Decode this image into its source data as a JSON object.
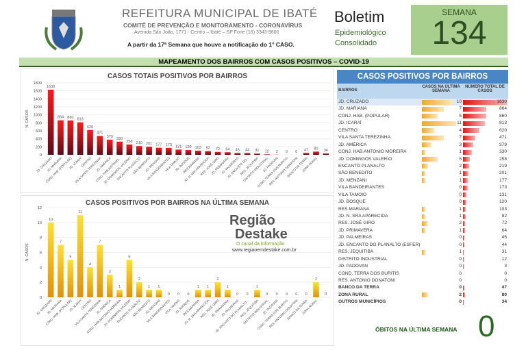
{
  "header": {
    "org": "REFEITURA MUNICIPAL DE IBATÉ",
    "committee": "COMITÊ DE PREVENÇÃO E MONITORAMENTO - CORONAVÍRUS",
    "address": "Avenida São João, 1771 - Centro – Ibaté – SP Fone (16) 3343-9800",
    "notice": "A partir da 17ª Semana que houve a notificação do 1° CASO.",
    "bulletin": "Boletim",
    "bulletin_sub1": "Epidemiológico",
    "bulletin_sub2": "Consolidado",
    "week_label": "SEMANA",
    "week_number": "134"
  },
  "banner": "MAPEAMENTO DOS BAIRROS COM CASOS POSITIVOS – COVID-19",
  "chart_data": [
    {
      "type": "bar",
      "title": "CASOS TOTAIS POSITIVOS POR BAIRROS",
      "ylabel": "N. CASOS",
      "ylim": [
        0,
        1800
      ],
      "yticks": [
        0,
        200,
        400,
        600,
        800,
        1000,
        1200,
        1400,
        1600,
        1800
      ],
      "color": "#e21a1a",
      "categories": [
        "JD. CRUZADO",
        "JD. MARIANA",
        "CONJ. HAB. (POPULAR)",
        "JD. ICARAÍ",
        "CENTRO",
        "VILA SANTA TEREZINHA",
        "JD. AMÉRICA",
        "CONJ. HAB.ANTONIO...",
        "JD. DOMINGOS VALERIO",
        "ENCANTO PLANALTO",
        "SÃO BENEDITO",
        "JD. MENZANI",
        "VILA BANDEIRANTES",
        "VILA TAMOIO",
        "JD. BOSQUE",
        "RES.MARIANA",
        "JD. N. SRA APARECIDA",
        "RES. JOSÉ GIRO",
        "JD. PRIMAVERA",
        "JD. PALMEIRAS",
        "JD. ENCANTO DO...",
        "RES. JEQUITIBA",
        "DISTRITO INDUSTRIAL",
        "JD. PADOVAN",
        "COND. TERRA DOS BURITIS",
        "RES. ANTONIO DONATONI",
        "BANCO DA TERRA",
        "ZONA RURAL",
        ""
      ],
      "values": [
        1630,
        864,
        860,
        813,
        620,
        471,
        379,
        330,
        258,
        219,
        201,
        177,
        173,
        131,
        120,
        103,
        92,
        72,
        64,
        45,
        44,
        31,
        12,
        3,
        0,
        0,
        47,
        80,
        34
      ]
    },
    {
      "type": "bar",
      "title": "CASOS POSITIVOS POR BAIRROS NA ÚLTIMA SEMANA",
      "ylabel": "N. CASOS",
      "ylim": [
        0,
        12
      ],
      "yticks": [
        0,
        2,
        4,
        6,
        8,
        10,
        12
      ],
      "color": "#f5c518",
      "categories": [
        "JD. CRUZADO",
        "JD. MARIANA",
        "CONJ. HAB. (POPULAR)",
        "JD. ICARAÍ",
        "CENTRO",
        "VILA SANTA TEREZINHA",
        "JD. AMÉRICA",
        "CONJ. HAB.ANTONIO MOREIRA",
        "JD. DOMINGOS VALERIO",
        "ENCANTO PLANALTO",
        "SÃO BENEDITO",
        "JD. MENZANI",
        "VILA BANDEIRANTES",
        "VILA TAMOIO",
        "JD. BOSQUE",
        "RES.MARIANA",
        "JD. N. SRA APARECIDA",
        "RES. JOSÉ GIRO",
        "JD. PRIMAVERA",
        "JD. PALMEIRAS",
        "JD. ENCANTO DO PLANALTO...",
        "RES. JEQUITIBA",
        "DISTRITO INDUSTRIAL",
        "JD. PADOVAN",
        "COND. TERRA DOS BURITIS",
        "RES. ANTONIO DONATONI",
        "BANCO DA TERRA",
        "ZONA RURAL",
        ""
      ],
      "values": [
        10,
        7,
        5,
        11,
        4,
        7,
        3,
        1,
        5,
        2,
        1,
        1,
        0,
        0,
        0,
        1,
        1,
        2,
        1,
        0,
        0,
        1,
        0,
        0,
        0,
        0,
        0,
        2,
        0
      ]
    }
  ],
  "table": {
    "title": "CASOS POSITIVOS POR BAIRROS",
    "col_name": "BAIRROS",
    "col_week": "CASOS NA ÚLTIMA SEMANA",
    "col_total": "NÚMERO TOTAL DE CASOS",
    "rows": [
      {
        "name": "JD. CRUZADO",
        "week": 10,
        "total": 1630
      },
      {
        "name": "JD. MARIANA",
        "week": 7,
        "total": 864
      },
      {
        "name": "CONJ. HAB. (POPULAR)",
        "week": 5,
        "total": 860
      },
      {
        "name": "JD. ICARAÍ",
        "week": 11,
        "total": 813
      },
      {
        "name": "CENTRO",
        "week": 4,
        "total": 620
      },
      {
        "name": "VILA SANTA TEREZINHA",
        "week": 7,
        "total": 471
      },
      {
        "name": "JD. AMÉRICA",
        "week": 3,
        "total": 379
      },
      {
        "name": "CONJ. HAB.ANTONIO MOREIRA",
        "week": 1,
        "total": 330
      },
      {
        "name": "JD. DOMINGOS VALERIO",
        "week": 5,
        "total": 258
      },
      {
        "name": "ENCANTO PLANALTO",
        "week": 2,
        "total": 219
      },
      {
        "name": "SÃO BENEDITO",
        "week": 1,
        "total": 201
      },
      {
        "name": "JD. MENZANI",
        "week": 1,
        "total": 177
      },
      {
        "name": "VILA BANDEIRANTES",
        "week": 0,
        "total": 173
      },
      {
        "name": "VILA TAMOIO",
        "week": 0,
        "total": 131
      },
      {
        "name": "JD. BOSQUE",
        "week": 0,
        "total": 120
      },
      {
        "name": "RES.MARIANA",
        "week": 1,
        "total": 103
      },
      {
        "name": "JD. N. SRA APARECIDA",
        "week": 1,
        "total": 92
      },
      {
        "name": "RES. JOSÉ GIRO",
        "week": 2,
        "total": 72
      },
      {
        "name": "JD. PRIMAVERA",
        "week": 1,
        "total": 64
      },
      {
        "name": "JD. PALMEIRAS",
        "week": 0,
        "total": 45
      },
      {
        "name": "JD. ENCANTO DO PLANALTO (ESFER)",
        "week": 0,
        "total": 44
      },
      {
        "name": "RES. JEQUITIBA",
        "week": 1,
        "total": 31
      },
      {
        "name": "DISTRITO INDUSTRIAL",
        "week": 0,
        "total": 12
      },
      {
        "name": "JD. PADOVAN",
        "week": 0,
        "total": 3
      },
      {
        "name": "COND. TERRA DOS BURITIS",
        "week": 0,
        "total": 0
      },
      {
        "name": "RES. ANTONIO DONATONI",
        "week": 0,
        "total": 0
      },
      {
        "name": "BANCO DA TERRA",
        "week": 0,
        "total": 47,
        "bold": true
      },
      {
        "name": "ZONA RURAL",
        "week": 2,
        "total": 80,
        "bold": true
      },
      {
        "name": "OUTROS MUNICÍPIOS",
        "week": 0,
        "total": 34,
        "bold": true
      }
    ]
  },
  "deaths": {
    "label": "ÓBITOS NA ÚLTIMA SEMANA",
    "value": "0"
  },
  "watermark": {
    "brand1": "Região",
    "brand2": "Destake",
    "slogan": "O canal da informação",
    "url": "www.regiaoemdestake.com.br"
  }
}
